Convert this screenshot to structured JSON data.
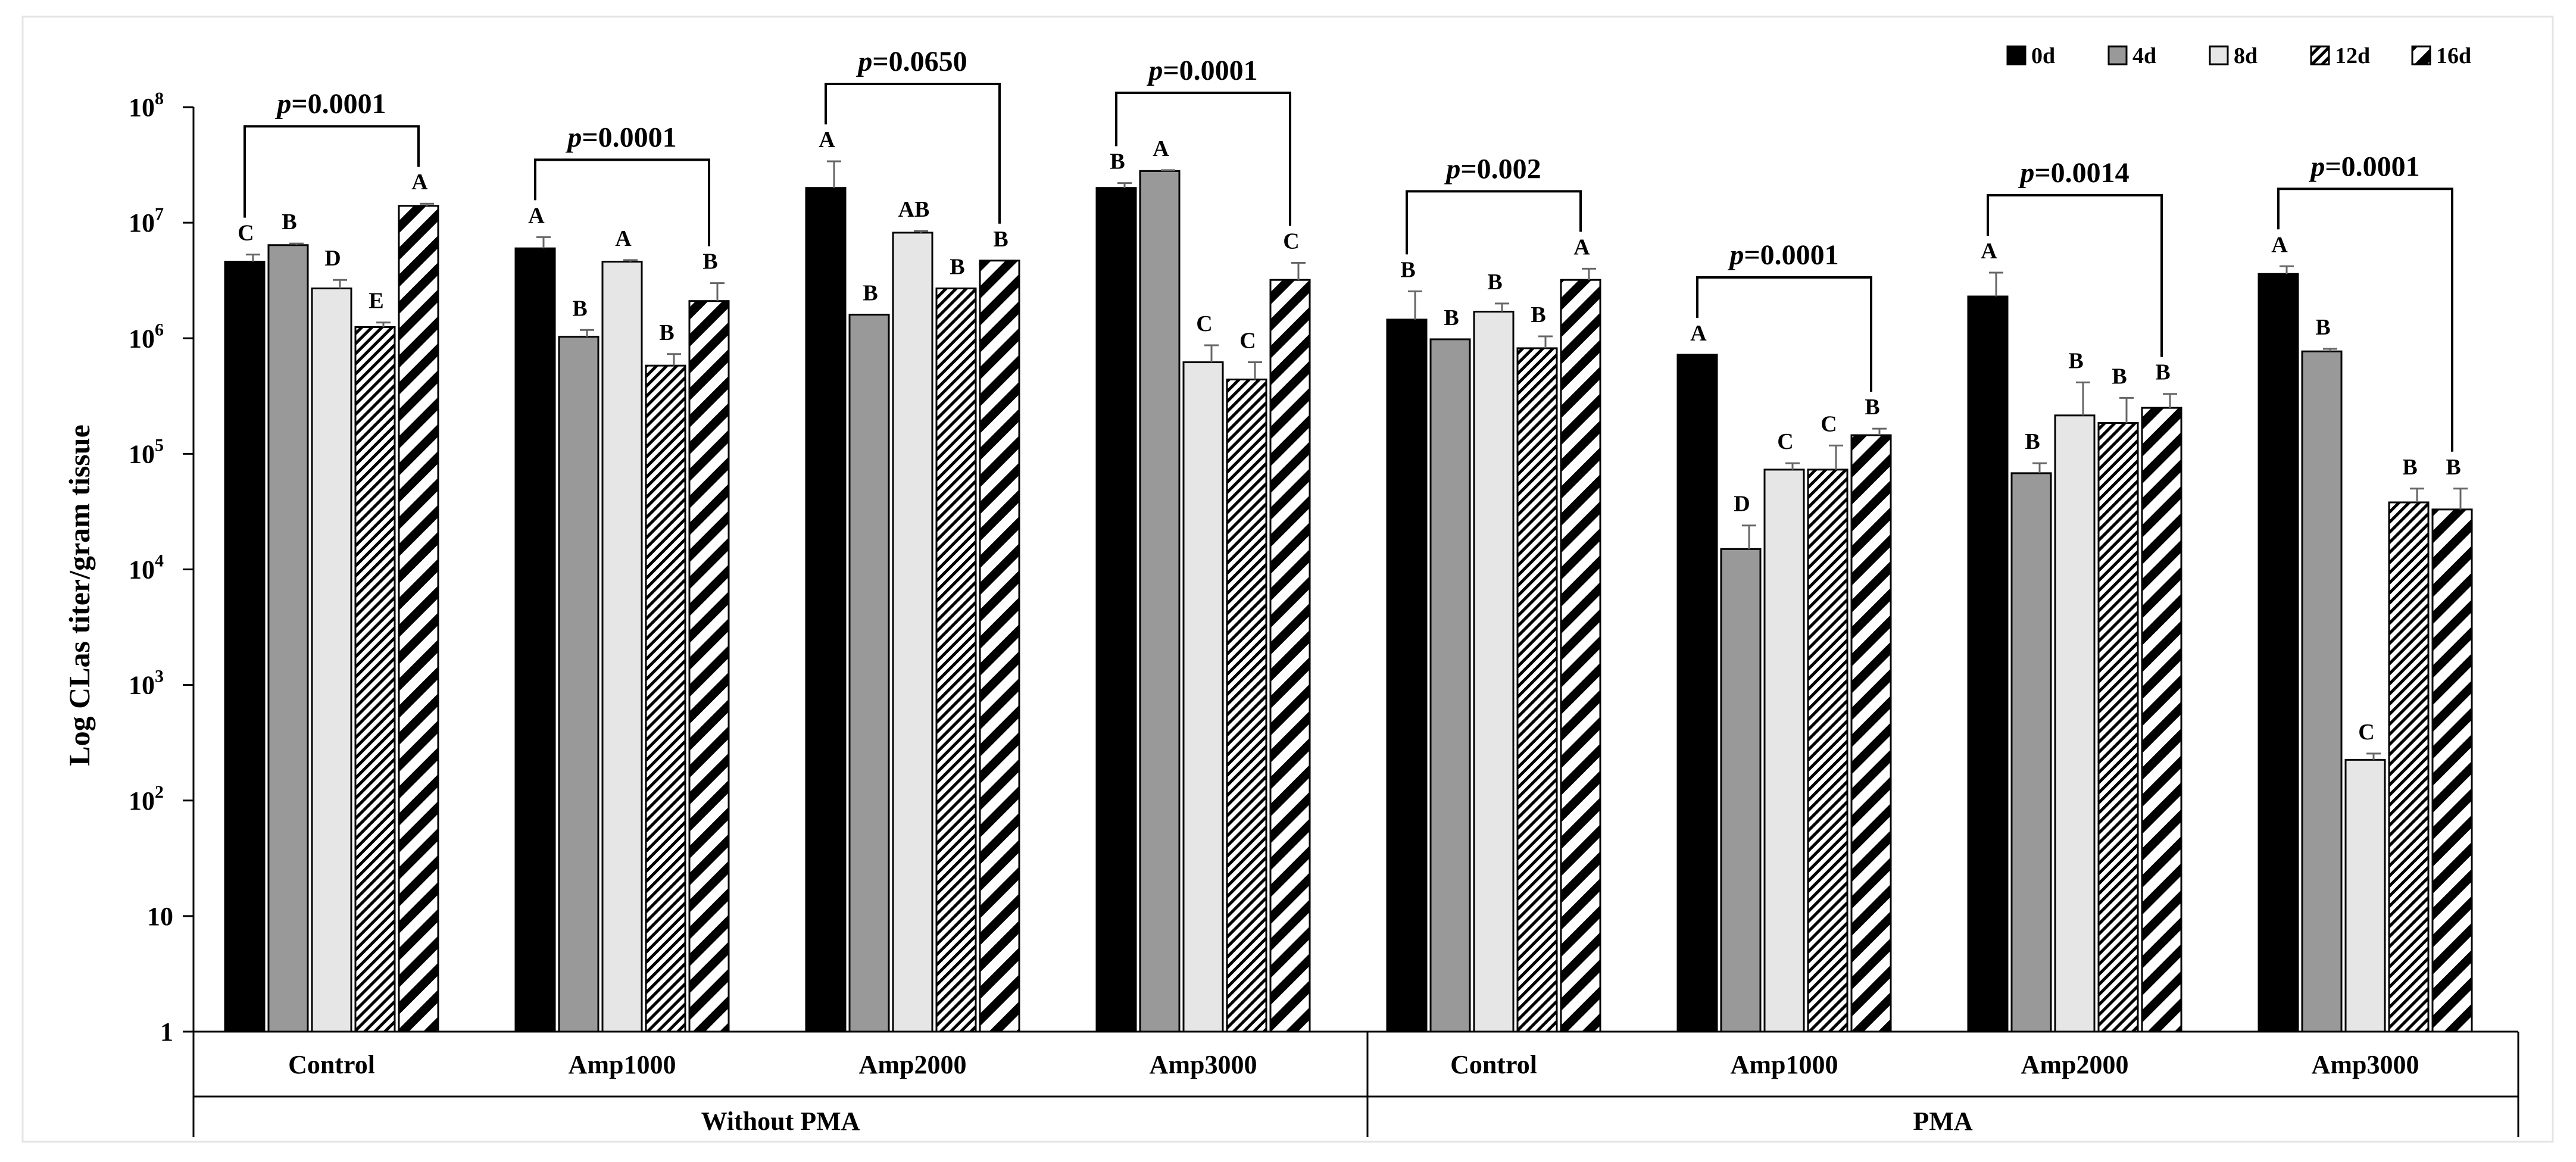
{
  "chart_data": {
    "type": "bar",
    "title": "",
    "ylabel": "Log CLas titer/gram tissue",
    "xlabel": "",
    "yscale": "log",
    "ylim": [
      1,
      100000000
    ],
    "yticks": [
      {
        "value": 1,
        "label": "1"
      },
      {
        "value": 10,
        "label": "10"
      },
      {
        "value": 100,
        "base": "10",
        "exp": "2"
      },
      {
        "value": 1000,
        "base": "10",
        "exp": "3"
      },
      {
        "value": 10000,
        "base": "10",
        "exp": "4"
      },
      {
        "value": 100000,
        "base": "10",
        "exp": "5"
      },
      {
        "value": 1000000,
        "base": "10",
        "exp": "6"
      },
      {
        "value": 10000000,
        "base": "10",
        "exp": "7"
      },
      {
        "value": 100000000,
        "base": "10",
        "exp": "8"
      }
    ],
    "legend": {
      "position": "top-right",
      "entries": [
        {
          "label": "0d",
          "pattern": "solid-black"
        },
        {
          "label": "4d",
          "pattern": "solid-gray"
        },
        {
          "label": "8d",
          "pattern": "solid-lightgray"
        },
        {
          "label": "12d",
          "pattern": "hatch-dense"
        },
        {
          "label": "16d",
          "pattern": "hatch-bold"
        }
      ]
    },
    "super_groups": [
      "Without PMA",
      "PMA"
    ],
    "groups": [
      {
        "label": "Control",
        "super": 0,
        "p_prefix": "p",
        "p_value": "=0.0001",
        "values": [
          4600000,
          6400000,
          2700000,
          1250000,
          14000000
        ],
        "errors": [
          700000,
          200000,
          500000,
          120000,
          600000
        ],
        "letters": [
          "C",
          "B",
          "D",
          "E",
          "A"
        ]
      },
      {
        "label": "Amp1000",
        "super": 0,
        "p_prefix": "p",
        "p_value": "=0.0001",
        "values": [
          6000000,
          1030000,
          4600000,
          580000,
          2100000
        ],
        "errors": [
          1500000,
          150000,
          150000,
          150000,
          900000
        ],
        "letters": [
          "A",
          "B",
          "A",
          "B",
          "B"
        ]
      },
      {
        "label": "Amp2000",
        "super": 0,
        "p_prefix": "p",
        "p_value": "=0.0650",
        "values": [
          20000000,
          1600000,
          8200000,
          2700000,
          4700000
        ],
        "errors": [
          14000000,
          0,
          300000,
          0,
          0
        ],
        "letters": [
          "A",
          "B",
          "AB",
          "B",
          "B"
        ]
      },
      {
        "label": "Amp3000",
        "super": 0,
        "p_prefix": "p",
        "p_value": "=0.0001",
        "values": [
          20000000,
          28000000,
          620000,
          440000,
          3200000
        ],
        "errors": [
          2000000,
          500000,
          250000,
          180000,
          1300000
        ],
        "letters": [
          "B",
          "A",
          "C",
          "C",
          "C"
        ]
      },
      {
        "label": "Control",
        "super": 1,
        "p_prefix": "p",
        "p_value": "=0.002",
        "values": [
          1450000,
          980000,
          1700000,
          820000,
          3200000
        ],
        "errors": [
          1100000,
          0,
          300000,
          220000,
          800000
        ],
        "letters": [
          "B",
          "B",
          "B",
          "B",
          "A"
        ]
      },
      {
        "label": "Amp1000",
        "super": 1,
        "p_prefix": "p",
        "p_value": "=0.0001",
        "values": [
          720000,
          15000,
          73000,
          73000,
          145000
        ],
        "errors": [
          0,
          9000,
          10000,
          45000,
          20000
        ],
        "letters": [
          "A",
          "D",
          "C",
          "C",
          "B"
        ]
      },
      {
        "label": "Amp2000",
        "super": 1,
        "p_prefix": "p",
        "p_value": "=0.0014",
        "values": [
          2300000,
          68000,
          215000,
          185000,
          250000
        ],
        "errors": [
          1400000,
          15000,
          200000,
          120000,
          80000
        ],
        "letters": [
          "A",
          "B",
          "B",
          "B",
          "B"
        ]
      },
      {
        "label": "Amp3000",
        "super": 1,
        "p_prefix": "p",
        "p_value": "=0.0001",
        "values": [
          3600000,
          770000,
          225,
          38000,
          33000
        ],
        "errors": [
          600000,
          40000,
          30,
          12000,
          17000
        ],
        "letters": [
          "A",
          "B",
          "C",
          "B",
          "B"
        ]
      }
    ]
  }
}
